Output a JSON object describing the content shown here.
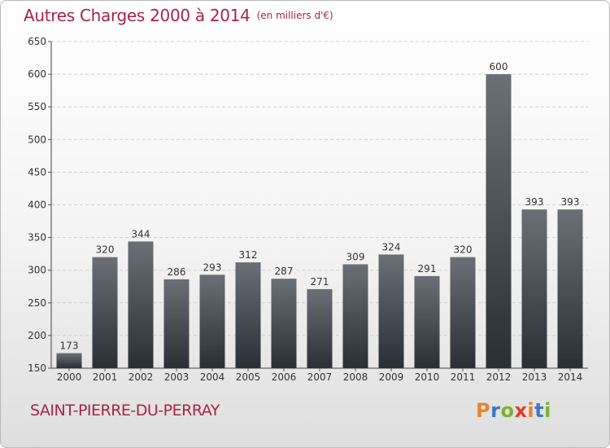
{
  "header": {
    "title": "Autres Charges 2000 à 2014",
    "subtitle": "(en milliers d'€)"
  },
  "footer": {
    "city": "SAINT-PIERRE-DU-PERRAY",
    "logo_text": "Proxiti",
    "logo_colors": [
      "#e8862a",
      "#3a78c4",
      "#7ab32e",
      "#e23a2a",
      "#e8862a",
      "#3a78c4",
      "#7ab32e"
    ]
  },
  "chart_data": {
    "type": "bar",
    "categories": [
      "2000",
      "2001",
      "2002",
      "2003",
      "2004",
      "2005",
      "2006",
      "2007",
      "2008",
      "2009",
      "2010",
      "2011",
      "2012",
      "2013",
      "2014"
    ],
    "values": [
      173,
      320,
      344,
      286,
      293,
      312,
      287,
      271,
      309,
      324,
      291,
      320,
      600,
      393,
      393
    ],
    "ylim": [
      150,
      650
    ],
    "yticks": [
      150,
      200,
      250,
      300,
      350,
      400,
      450,
      500,
      550,
      600,
      650
    ],
    "grid": true,
    "bar_color_top": "#6b7076",
    "bar_color_bottom": "#2a2f35",
    "title": "Autres Charges 2000 à 2014",
    "xlabel": "",
    "ylabel": ""
  }
}
